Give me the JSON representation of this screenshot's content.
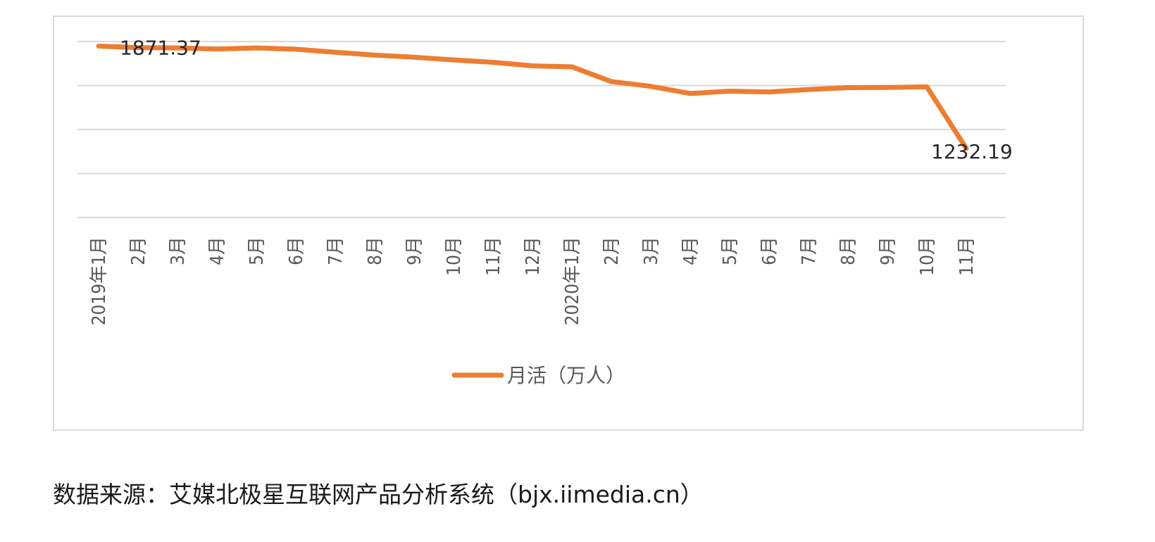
{
  "chart_data": {
    "type": "line",
    "categories": [
      "2019年1月",
      "2月",
      "3月",
      "4月",
      "5月",
      "6月",
      "7月",
      "8月",
      "9月",
      "10月",
      "11月",
      "12月",
      "2020年1月",
      "2月",
      "3月",
      "4月",
      "5月",
      "6月",
      "7月",
      "8月",
      "9月",
      "10月",
      "11月"
    ],
    "series": [
      {
        "name": "月活（万人）",
        "color": "#ED7D31",
        "values": [
          1871.37,
          1862,
          1860,
          1853,
          1860,
          1852,
          1833,
          1815,
          1802,
          1785,
          1770,
          1748,
          1742,
          1650,
          1620,
          1575,
          1590,
          1585,
          1600,
          1612,
          1613,
          1617,
          1232.19
        ]
      }
    ],
    "data_labels": [
      {
        "index": 0,
        "text": "1871.37"
      },
      {
        "index": 22,
        "text": "1232.19"
      }
    ],
    "ylim": [
      800,
      1900
    ],
    "gridlines": 5,
    "legend_position": "bottom",
    "title": "",
    "xlabel": "",
    "ylabel": ""
  },
  "source_note": "数据来源：艾媒北极星互联网产品分析系统（bjx.iimedia.cn）"
}
